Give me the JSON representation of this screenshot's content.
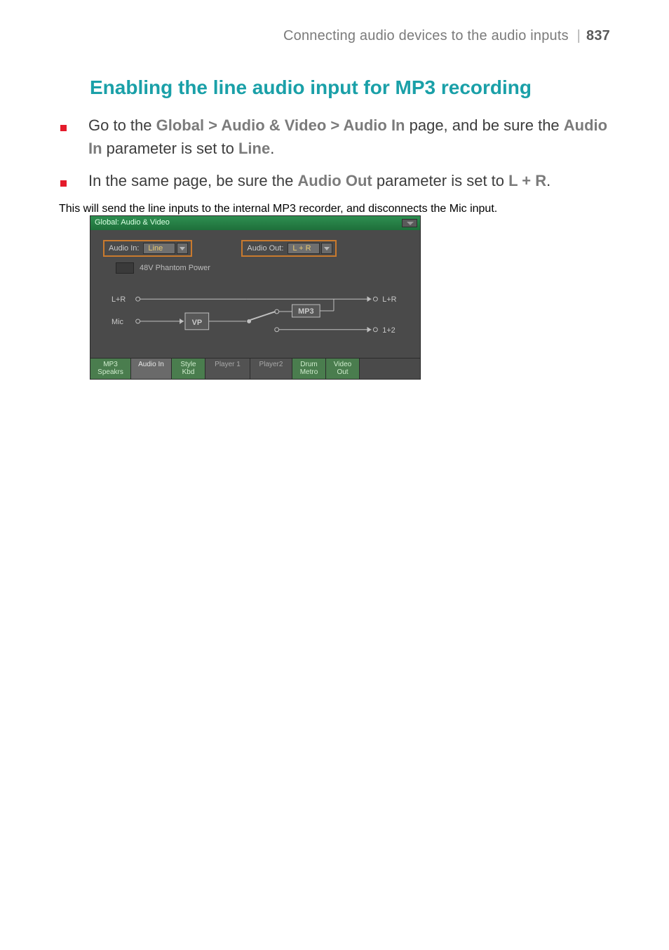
{
  "header": {
    "section": "Connecting audio devices to the audio inputs",
    "page_number": "837"
  },
  "title": "Enabling the line audio input for MP3 recording",
  "bullets": [
    {
      "pre": "Go to the ",
      "kw1": "Global > Audio & Video > Audio In",
      "mid": " page, and be sure the ",
      "kw2": "Audio In",
      "post": " parameter is set to ",
      "kw3": "Line",
      "tail": "."
    },
    {
      "pre": "In the same page, be sure the ",
      "kw1": "Audio Out",
      "mid": " parameter is set to ",
      "kw2": "L + R",
      "post": "",
      "kw3": "",
      "tail": "."
    }
  ],
  "trail": "This will send the line inputs to the internal MP3 recorder, and disconnects the Mic input.",
  "panel": {
    "title": "Global: Audio & Video",
    "audio_in_label": "Audio In:",
    "audio_in_value": "Line",
    "audio_out_label": "Audio Out:",
    "audio_out_value": "L + R",
    "phantom_label": "48V Phantom Power",
    "routing": {
      "left_top": "L+R",
      "left_bot": "Mic",
      "box_vp": "VP",
      "box_mp3": "MP3",
      "right_top": "L+R",
      "right_bot": "1+2"
    },
    "tabs": [
      {
        "l1": "MP3",
        "l2": "Speakrs",
        "w": "w58",
        "state": "green"
      },
      {
        "l1": "Audio In",
        "l2": "",
        "w": "w58",
        "state": "active"
      },
      {
        "l1": "Style",
        "l2": "Kbd",
        "w": "w48",
        "state": "green"
      },
      {
        "l1": "Player 1",
        "l2": "",
        "w": "w64",
        "state": "inactive"
      },
      {
        "l1": "Player2",
        "l2": "",
        "w": "w60",
        "state": "inactive"
      },
      {
        "l1": "Drum",
        "l2": "Metro",
        "w": "w48",
        "state": "green"
      },
      {
        "l1": "Video",
        "l2": "Out",
        "w": "w48",
        "state": "green"
      }
    ]
  },
  "colors": {
    "accent_teal": "#1aa0a8",
    "bullet_red": "#e41b2b",
    "combo_border": "#c97a2e",
    "combo_value_text": "#e5c873",
    "panel_bg": "#4a4a4a",
    "titlebar_top": "#2e8f51",
    "titlebar_bot": "#1e6f3a",
    "tab_green": "#4a7d4e"
  }
}
